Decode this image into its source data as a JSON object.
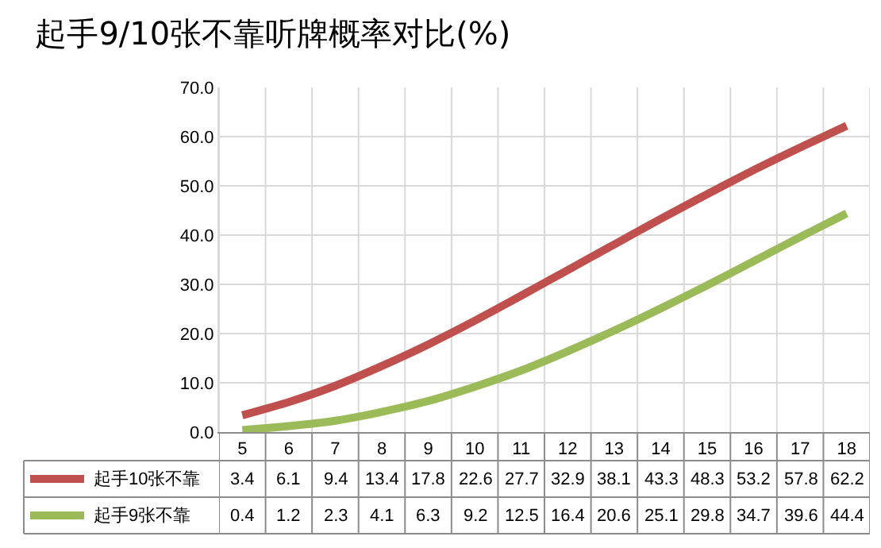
{
  "chart_data": {
    "type": "line",
    "title": "起手9/10张不靠听牌概率对比(%)",
    "categories": [
      "5",
      "6",
      "7",
      "8",
      "9",
      "10",
      "11",
      "12",
      "13",
      "14",
      "15",
      "16",
      "17",
      "18"
    ],
    "series": [
      {
        "name": "起手10张不靠",
        "color": "#c0504d",
        "values": [
          3.4,
          6.1,
          9.4,
          13.4,
          17.8,
          22.6,
          27.7,
          32.9,
          38.1,
          43.3,
          48.3,
          53.2,
          57.8,
          62.2
        ]
      },
      {
        "name": "起手9张不靠",
        "color": "#9bbb59",
        "values": [
          0.4,
          1.2,
          2.3,
          4.1,
          6.3,
          9.2,
          12.5,
          16.4,
          20.6,
          25.1,
          29.8,
          34.7,
          39.6,
          44.4
        ]
      }
    ],
    "ylim": [
      0,
      70
    ],
    "yticks": [
      {
        "value": 0,
        "label": "0.0"
      },
      {
        "value": 10,
        "label": "10.0"
      },
      {
        "value": 20,
        "label": "20.0"
      },
      {
        "value": 30,
        "label": "30.0"
      },
      {
        "value": 40,
        "label": "40.0"
      },
      {
        "value": 50,
        "label": "50.0"
      },
      {
        "value": 60,
        "label": "60.0"
      },
      {
        "value": 70,
        "label": "70.0"
      }
    ],
    "grid": true,
    "data_labels": true,
    "legend": "bottom left",
    "marker": "none",
    "line_style": "solid"
  }
}
